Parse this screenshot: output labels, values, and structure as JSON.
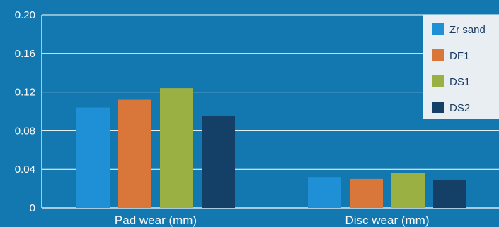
{
  "chart_data": {
    "type": "bar",
    "categories": [
      "Pad wear (mm)",
      "Disc wear (mm)"
    ],
    "series": [
      {
        "name": "Zr sand",
        "values": [
          0.104,
          0.032
        ]
      },
      {
        "name": "DF1",
        "values": [
          0.112,
          0.03
        ]
      },
      {
        "name": "DS1",
        "values": [
          0.124,
          0.036
        ]
      },
      {
        "name": "DS2",
        "values": [
          0.095,
          0.029
        ]
      }
    ],
    "ylim": [
      0,
      0.2
    ],
    "yticks": [
      "0",
      "0.04",
      "0.08",
      "0.12",
      "0.16",
      "0.20"
    ],
    "title": "",
    "xlabel": "",
    "ylabel": "",
    "grid": true,
    "legend_position": "top-right"
  },
  "colors": {
    "background": "#1478b0",
    "grid": "#ffffff",
    "legend_bg": "#e8eef2",
    "series": [
      "#1f8fd6",
      "#d9763a",
      "#9bb043",
      "#143f66"
    ]
  }
}
